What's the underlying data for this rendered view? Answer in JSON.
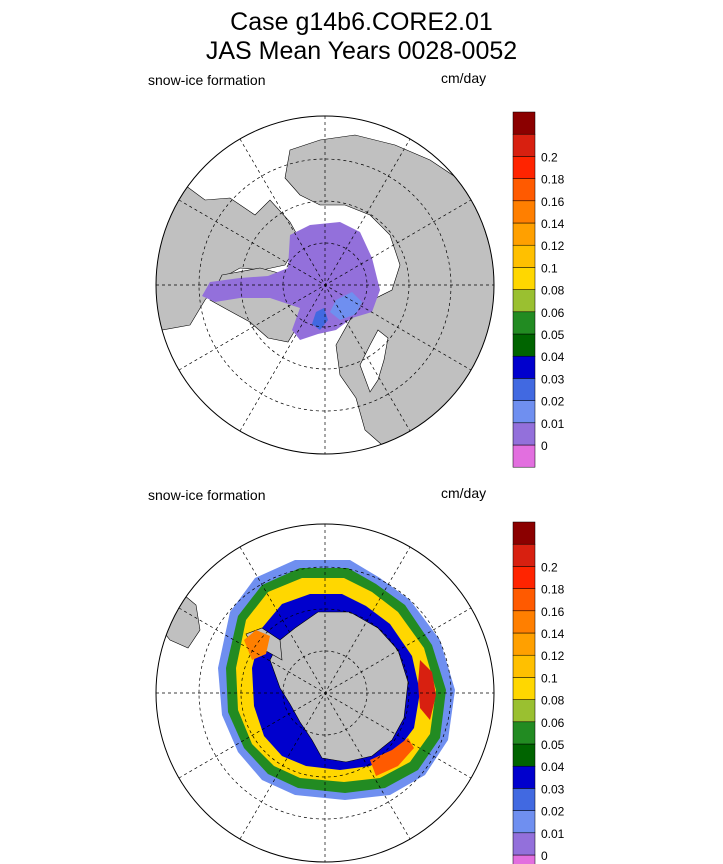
{
  "title": {
    "line1": "Case g14b6.CORE2.01",
    "line2": "JAS Mean   Years 0028-0052"
  },
  "colors": {
    "land": "#c0c0c0",
    "colorbar": [
      "#e26fdf",
      "#9370db",
      "#6f8ff0",
      "#4169e1",
      "#0000cd",
      "#006400",
      "#228b22",
      "#9ac030",
      "#ffd700",
      "#ffc000",
      "#ffa000",
      "#ff7f00",
      "#ff5a00",
      "#ff2400",
      "#d82010",
      "#8b0000"
    ]
  },
  "chart_data": [
    {
      "type": "heatmap",
      "projection": "polar stereographic",
      "hemisphere": "north",
      "title": "snow-ice formation",
      "units": "cm/day",
      "colorbar_levels": [
        "0",
        "0.01",
        "0.02",
        "0.03",
        "0.04",
        "0.05",
        "0.06",
        "0.08",
        "0.1",
        "0.12",
        "0.14",
        "0.16",
        "0.18",
        "0.2"
      ],
      "field_description": "values 0.01-0.02 over central Arctic; up to 0.03 near Svalbard/Barents"
    },
    {
      "type": "heatmap",
      "projection": "polar stereographic",
      "hemisphere": "south",
      "title": "snow-ice formation",
      "units": "cm/day",
      "colorbar_levels": [
        "0",
        "0.01",
        "0.02",
        "0.03",
        "0.04",
        "0.05",
        "0.06",
        "0.08",
        "0.1",
        "0.12",
        "0.14",
        "0.16",
        "0.18",
        "0.2"
      ],
      "field_description": "ring around Antarctica; 0.08-0.12 typical, up to 0.2 in East Antarctic sector"
    }
  ]
}
